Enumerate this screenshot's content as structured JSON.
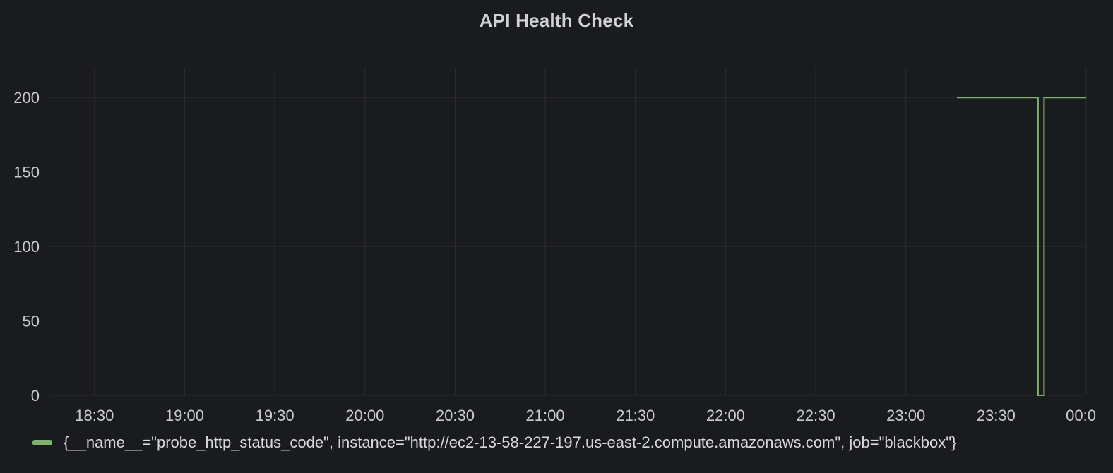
{
  "panel": {
    "title": "API Health Check"
  },
  "colors": {
    "background": "#1a1b1f",
    "grid": "#2c2d33",
    "series": "#7eb26d",
    "text": "#c9cbd1"
  },
  "chart_data": {
    "type": "line",
    "title": "API Health Check",
    "xlabel": "",
    "ylabel": "",
    "ylim": [
      0,
      220
    ],
    "xlim": [
      "18:15",
      "00:00"
    ],
    "x_ticks": [
      "18:30",
      "19:00",
      "19:30",
      "20:00",
      "20:30",
      "21:00",
      "21:30",
      "22:00",
      "22:30",
      "23:00",
      "23:30",
      "00:0"
    ],
    "y_ticks": [
      0,
      50,
      100,
      150,
      200
    ],
    "grid": true,
    "legend_position": "bottom-left",
    "series": [
      {
        "name": "{__name__=\"probe_http_status_code\", instance=\"http://ec2-13-58-227-197.us-east-2.compute.amazonaws.com\", job=\"blackbox\"}",
        "color": "#7eb26d",
        "points": [
          {
            "x": "23:17",
            "y": 200
          },
          {
            "x": "23:44",
            "y": 200
          },
          {
            "x": "23:44",
            "y": 0
          },
          {
            "x": "23:46",
            "y": 0
          },
          {
            "x": "23:46",
            "y": 200
          },
          {
            "x": "00:00",
            "y": 200
          }
        ]
      }
    ]
  }
}
